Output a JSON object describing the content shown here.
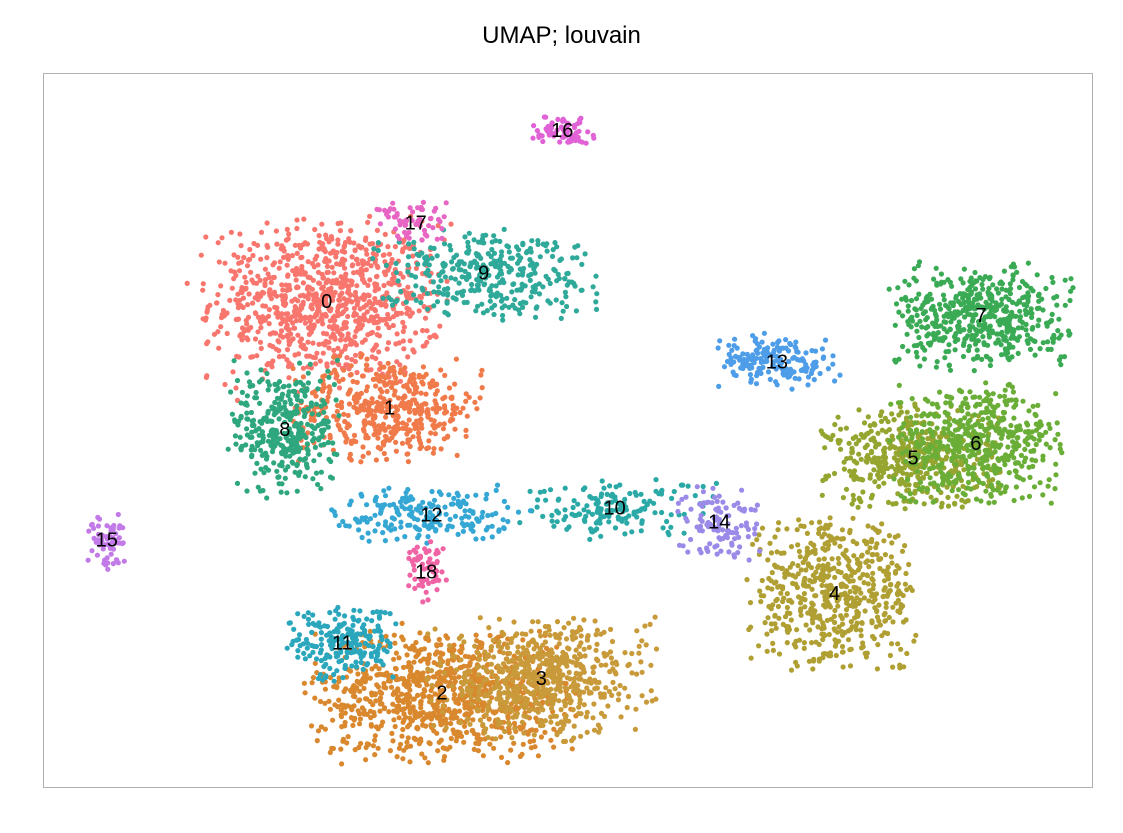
{
  "chart_data": {
    "type": "scatter",
    "title": "UMAP; louvain",
    "xlabel": "",
    "ylabel": "",
    "grid": false,
    "legend": "on data",
    "xlim": [
      0,
      100
    ],
    "ylim": [
      0,
      100
    ],
    "clusters": [
      {
        "label": "0",
        "color": "#f8766d",
        "x": 27.0,
        "y": 68.0,
        "sx": 5.5,
        "sy": 5.5,
        "n": 900
      },
      {
        "label": "1",
        "color": "#f07a4a",
        "x": 33.0,
        "y": 53.0,
        "sx": 4.5,
        "sy": 3.5,
        "n": 450
      },
      {
        "label": "2",
        "color": "#d9882e",
        "x": 38.0,
        "y": 13.0,
        "sx": 6.0,
        "sy": 4.5,
        "n": 900
      },
      {
        "label": "3",
        "color": "#c99a3a",
        "x": 47.5,
        "y": 15.0,
        "sx": 5.0,
        "sy": 4.0,
        "n": 600
      },
      {
        "label": "4",
        "color": "#b09f32",
        "x": 75.5,
        "y": 27.0,
        "sx": 4.0,
        "sy": 5.0,
        "n": 550
      },
      {
        "label": "5",
        "color": "#95a52f",
        "x": 83.0,
        "y": 46.0,
        "sx": 4.0,
        "sy": 3.5,
        "n": 450
      },
      {
        "label": "6",
        "color": "#6aae37",
        "x": 89.0,
        "y": 48.0,
        "sx": 4.0,
        "sy": 4.0,
        "n": 500
      },
      {
        "label": "7",
        "color": "#3aaa55",
        "x": 89.5,
        "y": 66.0,
        "sx": 4.0,
        "sy": 3.5,
        "n": 500
      },
      {
        "label": "8",
        "color": "#2fa77e",
        "x": 23.0,
        "y": 50.0,
        "sx": 2.5,
        "sy": 4.5,
        "n": 350
      },
      {
        "label": "9",
        "color": "#2fa99a",
        "x": 42.0,
        "y": 72.0,
        "sx": 5.0,
        "sy": 3.0,
        "n": 350
      },
      {
        "label": "10",
        "color": "#2aa9a6",
        "x": 54.5,
        "y": 39.0,
        "sx": 4.5,
        "sy": 2.0,
        "n": 160
      },
      {
        "label": "11",
        "color": "#2aa6bd",
        "x": 28.5,
        "y": 20.0,
        "sx": 2.5,
        "sy": 2.5,
        "n": 200
      },
      {
        "label": "12",
        "color": "#35a7d4",
        "x": 37.0,
        "y": 38.0,
        "sx": 4.5,
        "sy": 2.0,
        "n": 200
      },
      {
        "label": "13",
        "color": "#4e9de8",
        "x": 70.0,
        "y": 59.5,
        "sx": 2.8,
        "sy": 1.8,
        "n": 170
      },
      {
        "label": "14",
        "color": "#9b8ae8",
        "x": 64.5,
        "y": 37.0,
        "sx": 1.8,
        "sy": 2.5,
        "n": 110
      },
      {
        "label": "15",
        "color": "#c27ae8",
        "x": 6.0,
        "y": 34.5,
        "sx": 1.0,
        "sy": 2.0,
        "n": 60
      },
      {
        "label": "16",
        "color": "#e062d6",
        "x": 49.5,
        "y": 92.0,
        "sx": 1.4,
        "sy": 1.0,
        "n": 70
      },
      {
        "label": "17",
        "color": "#e866c3",
        "x": 35.5,
        "y": 79.0,
        "sx": 1.8,
        "sy": 1.5,
        "n": 60
      },
      {
        "label": "18",
        "color": "#f064a6",
        "x": 36.5,
        "y": 30.0,
        "sx": 1.0,
        "sy": 2.0,
        "n": 60
      }
    ]
  }
}
